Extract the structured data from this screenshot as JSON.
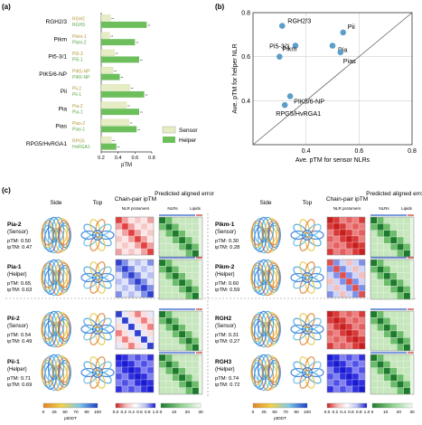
{
  "panels": {
    "a": "(a)",
    "b": "(b)",
    "c": "(c)"
  },
  "colors": {
    "sensor": "#e6ecc4",
    "helper": "#6dbf5c",
    "sensorText": "#b59a3a",
    "helperText": "#5aa84a",
    "dot": "#5b9ec9",
    "grid": "#d0d0d0"
  },
  "chart_data": [
    {
      "type": "bar",
      "orientation": "horizontal",
      "categories": [
        "RGH2/3",
        "Pikm",
        "Pi5-3/1",
        "PIK5/6-NP",
        "Pii",
        "Pia",
        "Pias",
        "RPG5/HvRGA1"
      ],
      "sub_labels": [
        [
          "RGH2",
          "RGH3"
        ],
        [
          "Pikm-1",
          "Pikm-2"
        ],
        [
          "Pi5-3",
          "Pi5-1"
        ],
        [
          "PIK5-NP",
          "PIK6-NP"
        ],
        [
          "Pii-2",
          "Pii-1"
        ],
        [
          "Pia-2",
          "Pia-1"
        ],
        [
          "Pias-2",
          "Pias-1"
        ],
        [
          "RPG5",
          "HvRGA1"
        ]
      ],
      "series": [
        {
          "name": "Sensor",
          "values": [
            0.31,
            0.3,
            0.36,
            0.34,
            0.54,
            0.5,
            0.53,
            0.32
          ]
        },
        {
          "name": "Helper",
          "values": [
            0.74,
            0.6,
            0.65,
            0.42,
            0.71,
            0.65,
            0.62,
            0.38
          ]
        }
      ],
      "xlabel": "pTM",
      "xticks": [
        "0.2",
        "0.4",
        "0.6",
        "0.8"
      ],
      "xlim": [
        0.2,
        0.8
      ],
      "legend": "right",
      "legend_labels": [
        "Sensor",
        "Helper"
      ]
    },
    {
      "type": "scatter",
      "points": [
        {
          "label": "RGH2/3",
          "x": 0.31,
          "y": 0.74
        },
        {
          "label": "Pii",
          "x": 0.54,
          "y": 0.71
        },
        {
          "label": "Pi5-3/1",
          "x": 0.36,
          "y": 0.65
        },
        {
          "label": "Pia",
          "x": 0.5,
          "y": 0.65
        },
        {
          "label": "Pias",
          "x": 0.53,
          "y": 0.62
        },
        {
          "label": "Pikm",
          "x": 0.3,
          "y": 0.6
        },
        {
          "label": "PIK5/6-NP",
          "x": 0.34,
          "y": 0.42
        },
        {
          "label": "RPG5/HvRGA1",
          "x": 0.32,
          "y": 0.38
        }
      ],
      "xlabel": "Ave. pTM for sensor NLRs",
      "ylabel": "Ave. pTM for helper NLR",
      "xticks": [
        "0.4",
        "0.6",
        "0.8"
      ],
      "yticks": [
        "0.4",
        "0.6",
        "0.8"
      ],
      "xlim": [
        0.2,
        0.8
      ],
      "ylim": [
        0.2,
        0.8
      ],
      "grid": true,
      "diagonal": true
    }
  ],
  "section_c": {
    "headers": {
      "side": "Side",
      "top": "Top",
      "chain_pair": "Chain-pair ipTM",
      "predicted": "Predicted aligned error",
      "nlr_protomers": "NLR protomers",
      "nlrs": "NLRs",
      "lipids": "Lipids"
    },
    "entries": [
      {
        "name": "Pia-2",
        "role": "(Sensor)",
        "ptm": "pTM:  0.50",
        "iptm": "ipTM:  0.47",
        "matrix": "red"
      },
      {
        "name": "Pia-1",
        "role": "(Helper)",
        "ptm": "pTM:  0.65",
        "iptm": "ipTM:  0.63",
        "matrix": "blue"
      },
      {
        "name": "Pii-2",
        "role": "(Sensor)",
        "ptm": "pTM:  0.54",
        "iptm": "ipTM:  0.49",
        "matrix": "mixed"
      },
      {
        "name": "Pii-1",
        "role": "(Helper)",
        "ptm": "pTM:  0.71",
        "iptm": "ipTM:  0.69",
        "matrix": "deepblue"
      },
      {
        "name": "Pikm-1",
        "role": "(Sensor)",
        "ptm": "pTM:  0.30",
        "iptm": "ipTM:  0.28",
        "matrix": "deepred"
      },
      {
        "name": "Pikm-2",
        "role": "(Helper)",
        "ptm": "pTM:  0.60",
        "iptm": "ipTM:  0.59",
        "matrix": "mixedred"
      },
      {
        "name": "RGH2",
        "role": "(Sensor)",
        "ptm": "pTM:  0.31",
        "iptm": "ipTM:  0.27",
        "matrix": "deepred"
      },
      {
        "name": "RGH3",
        "role": "(Helper)",
        "ptm": "pTM:  0.74",
        "iptm": "ipTM:  0.72",
        "matrix": "deepblue"
      }
    ],
    "colorbars": {
      "plddt": {
        "label": "pIDDT",
        "ticks": [
          "0",
          "25",
          "50",
          "70",
          "90",
          "100"
        ]
      },
      "iptm": {
        "ticks": [
          "0.0",
          "0.2",
          "0.4",
          "0.6",
          "0.8",
          "1.0"
        ]
      },
      "pae": {
        "ticks": [
          "0",
          "10",
          "20",
          "30"
        ]
      }
    }
  }
}
